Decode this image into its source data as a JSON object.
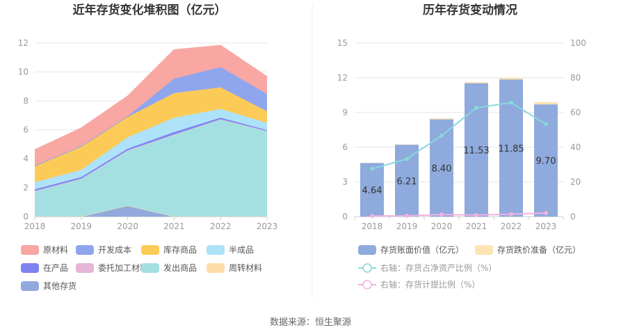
{
  "source_text": "数据来源：恒生聚源",
  "chart_data": [
    {
      "type": "area",
      "stacked": true,
      "title": "近年存货变化堆积图（亿元）",
      "categories": [
        "2018",
        "2019",
        "2020",
        "2021",
        "2022",
        "2023"
      ],
      "ylim": [
        0,
        12
      ],
      "yticks": [
        0,
        2,
        4,
        6,
        8,
        10,
        12
      ],
      "grid": true,
      "legend_position": "bottom",
      "series": [
        {
          "name": "原材料",
          "color": "#f8a7a3",
          "values": [
            1.1,
            1.25,
            1.4,
            2.0,
            1.5,
            1.2
          ]
        },
        {
          "name": "开发成本",
          "color": "#8fa6ef",
          "values": [
            0.05,
            0.05,
            0.05,
            1.0,
            1.4,
            1.2
          ]
        },
        {
          "name": "库存商品",
          "color": "#fccb57",
          "values": [
            1.1,
            1.6,
            1.4,
            1.7,
            1.5,
            0.8
          ]
        },
        {
          "name": "半成品",
          "color": "#ade2f9",
          "values": [
            0.5,
            0.5,
            0.8,
            1.0,
            0.6,
            0.5
          ]
        },
        {
          "name": "在产品",
          "color": "#7f83f0",
          "values": [
            0.1,
            0.1,
            0.1,
            0.15,
            0.1,
            0.05
          ]
        },
        {
          "name": "委托加工材料",
          "color": "#e7b5d8",
          "values": [
            0.02,
            0.02,
            0.03,
            0.03,
            0.03,
            0.02
          ]
        },
        {
          "name": "发出商品",
          "color": "#a4e0e2",
          "values": [
            1.75,
            2.6,
            3.8,
            5.65,
            6.7,
            5.9
          ]
        },
        {
          "name": "周转材料",
          "color": "#fedcaa",
          "values": [
            0.01,
            0.01,
            0.01,
            0.01,
            0.01,
            0.01
          ]
        },
        {
          "name": "其他存货",
          "color": "#91a9dc",
          "values": [
            0.0,
            0.0,
            0.75,
            0.0,
            0.0,
            0.0
          ]
        }
      ]
    },
    {
      "type": "bar",
      "stacked": true,
      "title": "历年存货变动情况",
      "categories": [
        "2018",
        "2019",
        "2020",
        "2021",
        "2022",
        "2023"
      ],
      "ylim": [
        0,
        15
      ],
      "yticks": [
        0,
        3,
        6,
        9,
        12,
        15
      ],
      "y2lim": [
        0,
        100
      ],
      "y2ticks": [
        0,
        20,
        40,
        60,
        80,
        100
      ],
      "grid": true,
      "legend_position": "bottom",
      "series": [
        {
          "name": "存货账面价值（亿元）",
          "type": "bar",
          "axis": "left",
          "color": "#8faadc",
          "values": [
            4.64,
            6.21,
            8.4,
            11.53,
            11.85,
            9.7
          ],
          "labels": [
            "4.64",
            "6.21",
            "8.40",
            "11.53",
            "11.85",
            "9.70"
          ]
        },
        {
          "name": "存货跌价准备（亿元）",
          "type": "bar",
          "axis": "left",
          "color": "#fde4b4",
          "values": [
            0.02,
            0.03,
            0.1,
            0.1,
            0.17,
            0.2
          ]
        },
        {
          "name": "右轴：存货占净资产比例（%）",
          "type": "line",
          "axis": "right",
          "color": "#88d8dc",
          "values": [
            27.5,
            33.3,
            46.7,
            62.7,
            65.7,
            53.3
          ]
        },
        {
          "name": "右轴：存货计提比例（%）",
          "type": "line",
          "axis": "right",
          "color": "#f1b2e1",
          "values": [
            0.4,
            0.5,
            1.2,
            0.9,
            1.4,
            2.1
          ]
        }
      ]
    }
  ]
}
